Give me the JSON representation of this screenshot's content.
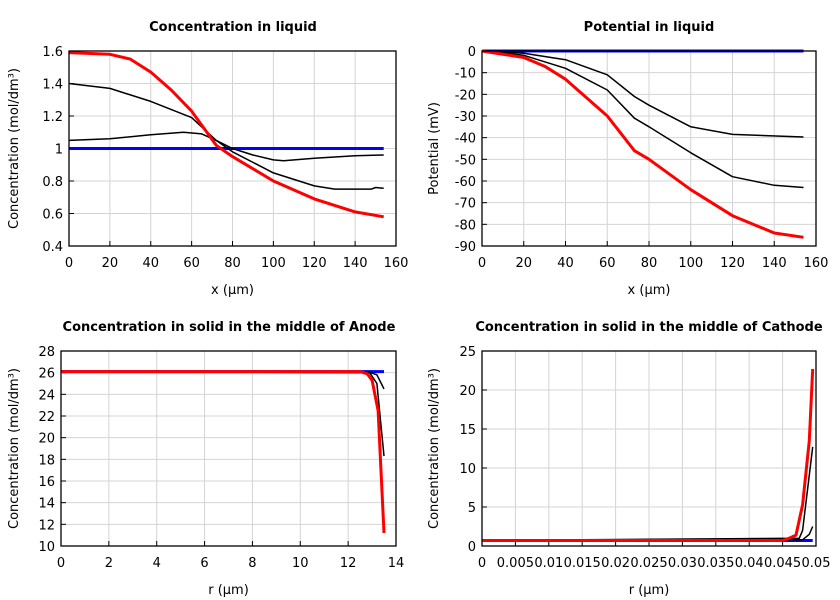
{
  "chart_data": [
    {
      "type": "line",
      "title": "Concentration in liquid",
      "xlabel": "x (µm)",
      "ylabel": "Concentration (mol/dm³)",
      "xlim": [
        0,
        160
      ],
      "ylim": [
        0.4,
        1.6
      ],
      "xticks": [
        "0",
        "20",
        "40",
        "60",
        "80",
        "100",
        "120",
        "140",
        "160"
      ],
      "yticks": [
        "0.4",
        "0.6",
        "0.8",
        "1",
        "1.2",
        "1.4",
        "1.6"
      ],
      "grid": true,
      "series": [
        {
          "color": "#0000ff",
          "x": [
            0,
            154
          ],
          "y": [
            1,
            1
          ]
        },
        {
          "color": "#000000",
          "x": [
            0,
            20,
            40,
            60,
            72,
            80,
            100,
            120,
            130,
            148,
            150,
            154
          ],
          "y": [
            1.4,
            1.37,
            1.29,
            1.19,
            1.05,
            0.98,
            0.85,
            0.77,
            0.75,
            0.75,
            0.76,
            0.755
          ]
        },
        {
          "color": "#000000",
          "x": [
            0,
            20,
            40,
            56,
            65,
            72,
            80,
            90,
            100,
            105,
            120,
            140,
            154
          ],
          "y": [
            1.05,
            1.06,
            1.085,
            1.1,
            1.09,
            1.05,
            1.0,
            0.96,
            0.93,
            0.925,
            0.94,
            0.955,
            0.96
          ]
        },
        {
          "color": "#ff0000",
          "x": [
            0,
            20,
            30,
            40,
            50,
            60,
            72,
            80,
            100,
            120,
            140,
            154
          ],
          "y": [
            1.59,
            1.58,
            1.55,
            1.47,
            1.36,
            1.23,
            1.02,
            0.95,
            0.8,
            0.69,
            0.61,
            0.58
          ]
        }
      ]
    },
    {
      "type": "line",
      "title": "Potential in liquid",
      "xlabel": "x (µm)",
      "ylabel": "Potential (mV)",
      "xlim": [
        0,
        160
      ],
      "ylim": [
        -90,
        0
      ],
      "xticks": [
        "0",
        "20",
        "40",
        "60",
        "80",
        "100",
        "120",
        "140",
        "160"
      ],
      "yticks": [
        "-90",
        "-80",
        "-70",
        "-60",
        "-50",
        "-40",
        "-30",
        "-20",
        "-10",
        "0"
      ],
      "grid": true,
      "series": [
        {
          "color": "#0000ff",
          "x": [
            0,
            154
          ],
          "y": [
            0,
            0
          ]
        },
        {
          "color": "#000000",
          "x": [
            0,
            20,
            40,
            60,
            73,
            80,
            100,
            120,
            154
          ],
          "y": [
            0,
            -1,
            -4,
            -11,
            -21,
            -25,
            -35,
            -38.5,
            -39.7
          ]
        },
        {
          "color": "#000000",
          "x": [
            0,
            20,
            40,
            60,
            73,
            80,
            100,
            120,
            140,
            154
          ],
          "y": [
            0,
            -2,
            -8,
            -18,
            -31,
            -35,
            -47,
            -58,
            -62,
            -63
          ]
        },
        {
          "color": "#ff0000",
          "x": [
            0,
            20,
            30,
            40,
            60,
            73,
            80,
            100,
            120,
            140,
            154
          ],
          "y": [
            0,
            -3,
            -7,
            -13,
            -30,
            -46,
            -50,
            -64,
            -76,
            -84,
            -86
          ]
        }
      ]
    },
    {
      "type": "line",
      "title": "Concentration in solid in the middle of Anode",
      "xlabel": "r (µm)",
      "ylabel": "Concentration (mol/dm³)",
      "xlim": [
        0,
        14
      ],
      "ylim": [
        10,
        28
      ],
      "xticks": [
        "0",
        "2",
        "4",
        "6",
        "8",
        "10",
        "12",
        "14"
      ],
      "yticks": [
        "10",
        "12",
        "14",
        "16",
        "18",
        "20",
        "22",
        "24",
        "26",
        "28"
      ],
      "grid": true,
      "series": [
        {
          "color": "#0000ff",
          "x": [
            0,
            13.5
          ],
          "y": [
            26.1,
            26.1
          ]
        },
        {
          "color": "#000000",
          "x": [
            0,
            12.8,
            13.2,
            13.5
          ],
          "y": [
            26.1,
            26.1,
            25.8,
            24.5
          ]
        },
        {
          "color": "#000000",
          "x": [
            0,
            12.9,
            13.2,
            13.5
          ],
          "y": [
            26.1,
            26.0,
            25.0,
            18.3
          ]
        },
        {
          "color": "#ff0000",
          "x": [
            0,
            12.5,
            12.8,
            13.0,
            13.25,
            13.5
          ],
          "y": [
            26.1,
            26.1,
            25.9,
            25.3,
            22.5,
            11.2
          ]
        }
      ]
    },
    {
      "type": "line",
      "title": "Concentration in solid in the middle of Cathode",
      "xlabel": "r (µm)",
      "ylabel": "Concentration (mol/dm³)",
      "xlim": [
        0,
        0.05
      ],
      "ylim": [
        0,
        25
      ],
      "xticks": [
        "0",
        "0.005",
        "0.01",
        "0.015",
        "0.02",
        "0.025",
        "0.03",
        "0.035",
        "0.04",
        "0.045",
        "0.05"
      ],
      "yticks": [
        "0",
        "5",
        "10",
        "15",
        "20",
        "25"
      ],
      "grid": true,
      "series": [
        {
          "color": "#0000ff",
          "x": [
            0,
            0.0495
          ],
          "y": [
            0.7,
            0.7
          ]
        },
        {
          "color": "#000000",
          "x": [
            0,
            0.0475,
            0.048,
            0.0495
          ],
          "y": [
            0.7,
            1.0,
            2.0,
            12.7
          ]
        },
        {
          "color": "#000000",
          "x": [
            0,
            0.048,
            0.049,
            0.0495
          ],
          "y": [
            0.7,
            0.8,
            1.5,
            2.5
          ]
        },
        {
          "color": "#ff0000",
          "x": [
            0,
            0.045,
            0.046,
            0.047,
            0.048,
            0.049,
            0.0495
          ],
          "y": [
            0.7,
            0.7,
            1.0,
            1.4,
            5.3,
            13.5,
            22.7
          ]
        }
      ]
    }
  ]
}
